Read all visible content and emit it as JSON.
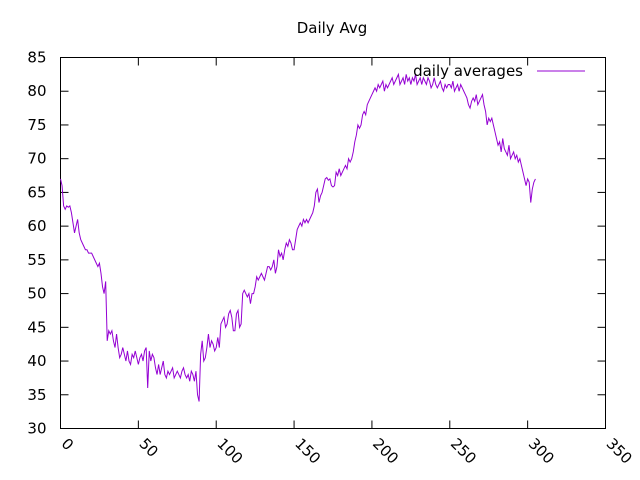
{
  "chart_data": {
    "type": "line",
    "title": "Daily Avg",
    "x": [
      0,
      1,
      2,
      3,
      4,
      5,
      6,
      7,
      8,
      9,
      10,
      11,
      12,
      13,
      14,
      15,
      16,
      17,
      18,
      19,
      20,
      21,
      22,
      23,
      24,
      25,
      26,
      27,
      28,
      29,
      30,
      31,
      32,
      33,
      34,
      35,
      36,
      37,
      38,
      39,
      40,
      41,
      42,
      43,
      44,
      45,
      46,
      47,
      48,
      49,
      50,
      51,
      52,
      53,
      54,
      55,
      56,
      57,
      58,
      59,
      60,
      61,
      62,
      63,
      64,
      65,
      66,
      67,
      68,
      69,
      70,
      71,
      72,
      73,
      74,
      75,
      76,
      77,
      78,
      79,
      80,
      81,
      82,
      83,
      84,
      85,
      86,
      87,
      88,
      89,
      90,
      91,
      92,
      93,
      94,
      95,
      96,
      97,
      98,
      99,
      100,
      101,
      102,
      103,
      104,
      105,
      106,
      107,
      108,
      109,
      110,
      111,
      112,
      113,
      114,
      115,
      116,
      117,
      118,
      119,
      120,
      121,
      122,
      123,
      124,
      125,
      126,
      127,
      128,
      129,
      130,
      131,
      132,
      133,
      134,
      135,
      136,
      137,
      138,
      139,
      140,
      141,
      142,
      143,
      144,
      145,
      146,
      147,
      148,
      149,
      150,
      151,
      152,
      153,
      154,
      155,
      156,
      157,
      158,
      159,
      160,
      161,
      162,
      163,
      164,
      165,
      166,
      167,
      168,
      169,
      170,
      171,
      172,
      173,
      174,
      175,
      176,
      177,
      178,
      179,
      180,
      181,
      182,
      183,
      184,
      185,
      186,
      187,
      188,
      189,
      190,
      191,
      192,
      193,
      194,
      195,
      196,
      197,
      198,
      199,
      200,
      201,
      202,
      203,
      204,
      205,
      206,
      207,
      208,
      209,
      210,
      211,
      212,
      213,
      214,
      215,
      216,
      217,
      218,
      219,
      220,
      221,
      222,
      223,
      224,
      225,
      226,
      227,
      228,
      229,
      230,
      231,
      232,
      233,
      234,
      235,
      236,
      237,
      238,
      239,
      240,
      241,
      242,
      243,
      244,
      245,
      246,
      247,
      248,
      249,
      250,
      251,
      252,
      253,
      254,
      255,
      256,
      257,
      258,
      259,
      260,
      261,
      262,
      263,
      264,
      265,
      266,
      267,
      268,
      269,
      270,
      271,
      272,
      273,
      274,
      275,
      276,
      277,
      278,
      279,
      280,
      281,
      282,
      283,
      284,
      285,
      286,
      287,
      288,
      289,
      290,
      291,
      292,
      293,
      294,
      295,
      296,
      297,
      298,
      299,
      300,
      301,
      302,
      303,
      304,
      305
    ],
    "series": [
      {
        "name": "daily averages",
        "color": "#9400d3",
        "values": [
          67,
          66,
          63,
          62.5,
          63,
          62.8,
          63,
          62,
          60.5,
          59,
          60,
          61,
          59,
          58,
          57.5,
          57,
          56.5,
          56.5,
          56,
          56,
          56,
          55.5,
          55,
          54.5,
          54,
          54.5,
          53,
          51,
          50,
          51.8,
          43,
          44.5,
          44,
          44.5,
          43,
          42,
          44,
          42,
          40.5,
          41,
          42,
          41,
          40,
          41.5,
          40,
          39.5,
          41,
          40.5,
          41.5,
          40.5,
          39.5,
          40.5,
          41,
          40,
          41.5,
          42,
          36,
          41.5,
          40,
          41,
          40.5,
          39,
          38,
          39.5,
          38,
          39,
          40,
          38,
          37.5,
          38.5,
          38,
          38.5,
          39,
          37.5,
          38,
          38.5,
          38,
          37.5,
          38.5,
          39,
          38,
          37.5,
          38,
          37,
          38.5,
          38,
          37,
          38.5,
          35,
          34,
          41,
          43,
          40,
          40.5,
          42,
          44,
          42,
          43,
          42.5,
          41.5,
          42,
          43.5,
          42,
          45.5,
          46,
          46.5,
          45,
          45.5,
          47,
          47.5,
          46.5,
          44.5,
          44.5,
          47,
          47.5,
          45,
          45.5,
          50,
          50.5,
          50,
          49.5,
          50,
          48.5,
          50,
          50,
          51,
          52.5,
          52,
          52.5,
          53,
          52.5,
          52,
          53,
          54,
          54,
          53.5,
          54,
          55,
          53,
          54,
          56.5,
          55.5,
          56,
          55,
          56.5,
          57.5,
          57,
          58,
          57.5,
          56.5,
          56.5,
          58,
          59.5,
          60,
          60.5,
          60,
          61,
          60.5,
          61,
          60.5,
          61,
          61.5,
          62,
          63,
          65,
          65.5,
          63.5,
          64.5,
          65,
          66,
          67,
          67.2,
          66.8,
          67,
          66,
          65.8,
          66,
          68,
          67.5,
          68.5,
          67.5,
          68,
          68.5,
          69,
          68.5,
          70,
          69.5,
          70,
          71,
          72.5,
          73.5,
          75,
          74.5,
          75,
          76.5,
          77,
          76.5,
          78,
          78.5,
          79,
          79.5,
          80,
          80.5,
          80,
          81,
          80.5,
          81,
          81.5,
          80,
          81,
          80.5,
          81,
          81.5,
          82,
          81,
          81.5,
          82,
          82.5,
          81,
          81.5,
          82,
          81,
          82.5,
          81.5,
          82,
          81,
          82,
          81.5,
          82.5,
          81,
          81.5,
          82,
          81,
          82,
          81.5,
          81,
          82,
          81.5,
          80.5,
          81,
          82,
          81,
          80.5,
          81,
          81.5,
          80.5,
          80,
          81,
          80.5,
          81,
          81,
          80.5,
          81.5,
          80,
          80.5,
          81,
          80,
          81,
          80.5,
          80,
          79.5,
          79,
          78,
          77.5,
          78.5,
          79,
          78.5,
          79.5,
          78,
          78.5,
          79,
          79.5,
          78,
          77,
          75,
          76,
          75.5,
          76,
          75,
          74,
          73,
          72,
          72.5,
          71,
          73,
          71.5,
          71,
          70.5,
          72,
          70,
          70.5,
          71,
          70,
          70.5,
          69.5,
          70,
          69,
          68,
          67,
          66,
          67,
          66.5,
          63.5,
          65.5,
          66.5,
          67
        ]
      }
    ],
    "xlim": [
      0,
      350
    ],
    "xticks": [
      0,
      50,
      100,
      150,
      200,
      250,
      300,
      350
    ],
    "ylim": [
      30,
      85
    ],
    "yticks": [
      30,
      35,
      40,
      45,
      50,
      55,
      60,
      65,
      70,
      75,
      80,
      85
    ],
    "legend": "top-right"
  }
}
